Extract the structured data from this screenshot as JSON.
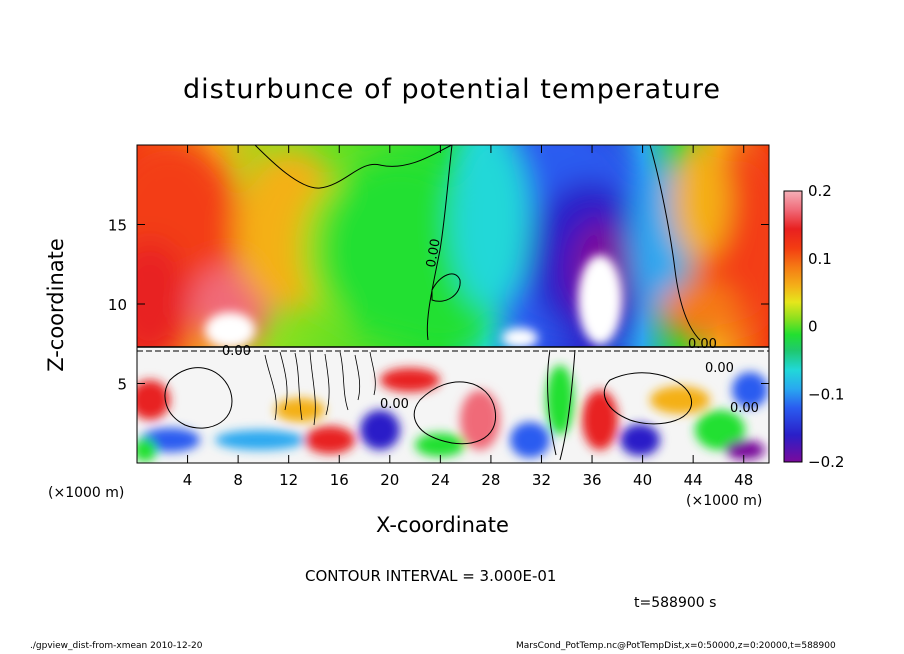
{
  "chart_data": {
    "type": "heatmap",
    "title": "disturbunce of potential temperature",
    "xlabel": "X-coordinate",
    "ylabel": "Z-coordinate",
    "x_unit_left": "(×1000 m)",
    "x_unit_right": "(×1000 m)",
    "xlim": [
      0,
      50
    ],
    "ylim": [
      0,
      20
    ],
    "x_ticks": [
      4,
      8,
      12,
      16,
      20,
      24,
      28,
      32,
      36,
      40,
      44,
      48
    ],
    "x_tick_labels": [
      "4",
      "8",
      "12",
      "16",
      "20",
      "24",
      "28",
      "32",
      "36",
      "40",
      "44",
      "48"
    ],
    "y_ticks": [
      5,
      10,
      15
    ],
    "y_tick_labels": [
      "5",
      "10",
      "15"
    ],
    "colorbar": {
      "range": [
        -0.2,
        0.2
      ],
      "ticks": [
        0.2,
        0.1,
        0,
        -0.1,
        -0.2
      ],
      "tick_labels": [
        "0.2",
        "0.1",
        "0",
        "−0.1",
        "−0.2"
      ],
      "placement": "right"
    },
    "contour_labels": [
      "0.00",
      "0.00",
      "0.00",
      "0.00",
      "0.00",
      "0.00"
    ],
    "contour_interval_text": "CONTOUR INTERVAL = 3.000E-01",
    "features": [
      {
        "x": 3,
        "z": 16,
        "value": 0.15
      },
      {
        "x": 7,
        "z": 9,
        "value": 0.2
      },
      {
        "x": 36,
        "z": 12,
        "value": -0.2
      },
      {
        "x": 32,
        "z": 16,
        "value": -0.15
      },
      {
        "x": 48,
        "z": 14,
        "value": 0.15
      },
      {
        "x": 17,
        "z": 14,
        "value": 0.02
      },
      {
        "x": 24,
        "z": 10,
        "value": 0.0
      }
    ]
  },
  "annotations": {
    "time": "t=588900 s",
    "footer_left": "./gpview_dist-from-xmean  2010-12-20",
    "footer_right": "MarsCond_PotTemp.nc@PotTempDist,x=0:50000,z=0:20000,t=588900"
  },
  "colors": {
    "colormap": [
      "#7a0a9c",
      "#2a1fc8",
      "#2a5cf0",
      "#29a8f0",
      "#21d8d8",
      "#1fc870",
      "#22e030",
      "#8ee01e",
      "#e6e61c",
      "#f4b018",
      "#f57a14",
      "#f33c12",
      "#e82020",
      "#f06a78",
      "#f5b0b8"
    ]
  }
}
